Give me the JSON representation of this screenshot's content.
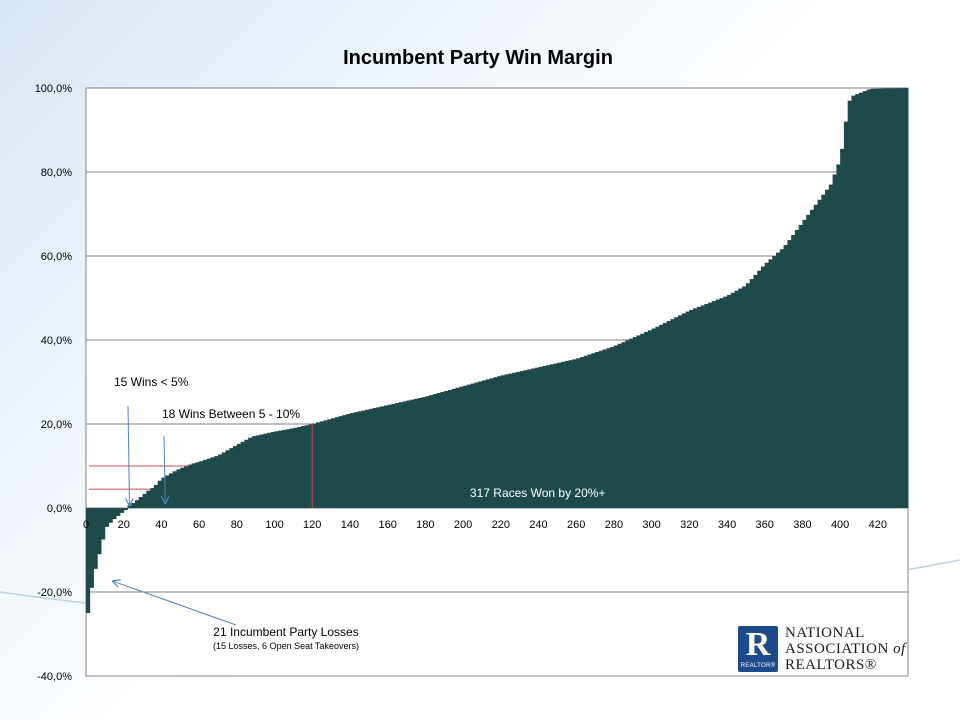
{
  "chart_data": {
    "type": "bar",
    "title": "Incumbent Party Win Margin",
    "xlabel": "",
    "ylabel": "",
    "x_ticks": [
      0,
      20,
      40,
      60,
      80,
      100,
      120,
      140,
      160,
      180,
      200,
      220,
      240,
      260,
      280,
      300,
      320,
      340,
      360,
      380,
      400,
      420
    ],
    "y_ticks": [
      "100,0%",
      "80,0%",
      "60,0%",
      "40,0%",
      "20,0%",
      "0,0%",
      "-20,0%",
      "-40,0%"
    ],
    "ylim": [
      -40,
      100
    ],
    "xlim": [
      0,
      436
    ],
    "grid": true,
    "bar_color": "#1f4a4c",
    "control_points": [
      [
        0,
        -29
      ],
      [
        2,
        -21
      ],
      [
        4,
        -17
      ],
      [
        6,
        -12
      ],
      [
        8,
        -10
      ],
      [
        10,
        -5
      ],
      [
        14,
        -3
      ],
      [
        18,
        -1.5
      ],
      [
        21,
        -0.5
      ],
      [
        22,
        0.3
      ],
      [
        26,
        1.5
      ],
      [
        30,
        3
      ],
      [
        34,
        4.5
      ],
      [
        36,
        5
      ],
      [
        40,
        7
      ],
      [
        44,
        8
      ],
      [
        48,
        9
      ],
      [
        52,
        9.8
      ],
      [
        56,
        10.5
      ],
      [
        60,
        11
      ],
      [
        70,
        12.5
      ],
      [
        80,
        15
      ],
      [
        88,
        17
      ],
      [
        100,
        18.2
      ],
      [
        110,
        19
      ],
      [
        120,
        20
      ],
      [
        140,
        22.5
      ],
      [
        160,
        24.5
      ],
      [
        180,
        26.5
      ],
      [
        200,
        29
      ],
      [
        220,
        31.5
      ],
      [
        240,
        33.5
      ],
      [
        260,
        35.5
      ],
      [
        280,
        38.5
      ],
      [
        300,
        42.5
      ],
      [
        320,
        47
      ],
      [
        340,
        50.5
      ],
      [
        350,
        53
      ],
      [
        360,
        58
      ],
      [
        370,
        62
      ],
      [
        380,
        68
      ],
      [
        390,
        74
      ],
      [
        395,
        77
      ],
      [
        400,
        83
      ],
      [
        402,
        88
      ],
      [
        404,
        96
      ],
      [
        406,
        98
      ],
      [
        416,
        99.8
      ],
      [
        436,
        100
      ]
    ],
    "annotations": [
      {
        "text": "15 Wins < 5%",
        "x": 22,
        "y": 0
      },
      {
        "text": "18 Wins Between 5 - 10%",
        "x": 41,
        "y": 0
      },
      {
        "text": "317 Races Won by 20%+",
        "x": 212,
        "y": 5
      },
      {
        "text": "21 Incumbent Party Losses",
        "x": 8,
        "y": -16
      },
      {
        "text": "(15 Losses, 6 Open Seat Takeovers)",
        "x": 8,
        "y": -16
      }
    ],
    "reference_lines": [
      {
        "type": "horizontal",
        "y": 10,
        "x_from": 0,
        "x_to": 55,
        "color": "#c0504d"
      },
      {
        "type": "horizontal",
        "y": 4.5,
        "x_from": 0,
        "x_to": 35,
        "color": "#c0504d"
      },
      {
        "type": "vertical",
        "x": 120,
        "y_from": 0,
        "y_to": 20,
        "color": "#c0504d"
      }
    ]
  },
  "logo": {
    "letter": "R",
    "realtor": "REALTOR®",
    "line1": "NATIONAL",
    "line2": "ASSOCIATION",
    "line2_of": "of",
    "line3": "REALTORS®"
  },
  "colors": {
    "accent": "#1f4a4c",
    "arrow": "#4f81bd",
    "reference": "#c0504d",
    "logo_blue": "#1c4a8c"
  }
}
